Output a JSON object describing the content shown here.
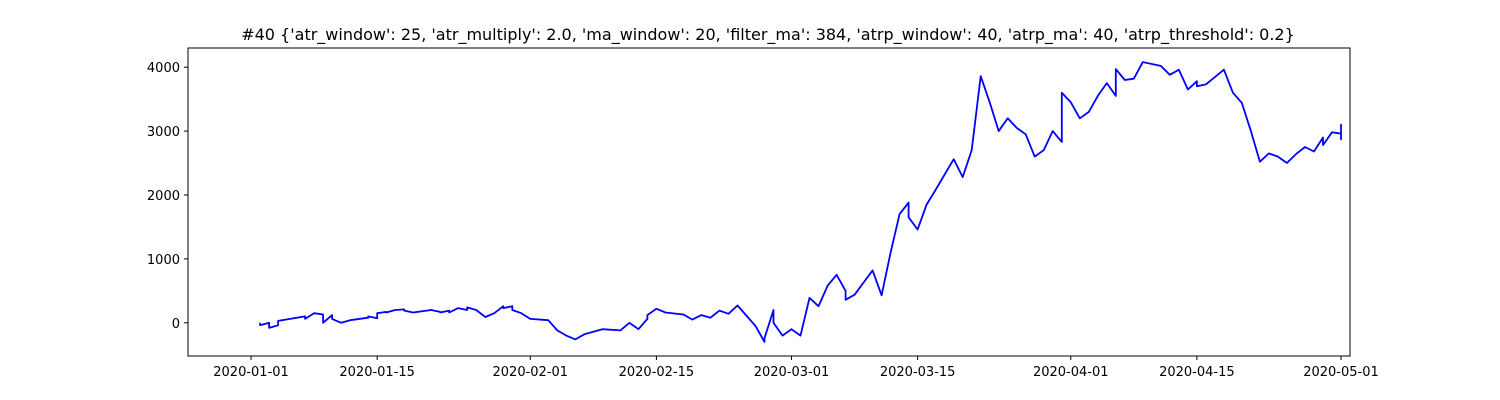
{
  "chart_data": {
    "type": "line",
    "title": "#40 {'atr_window': 25, 'atr_multiply': 2.0, 'ma_window': 20, 'filter_ma': 384, 'atrp_window': 40, 'atrp_ma': 40, 'atrp_threshold': 0.2}",
    "xlabel": "",
    "ylabel": "",
    "xlim": [
      "2019-12-25",
      "2020-05-02"
    ],
    "ylim": [
      -520,
      4300
    ],
    "grid": false,
    "legend": "none",
    "x_ticks": [
      "2020-01-01",
      "2020-01-15",
      "2020-02-01",
      "2020-02-15",
      "2020-03-01",
      "2020-03-15",
      "2020-04-01",
      "2020-04-15",
      "2020-05-01"
    ],
    "y_ticks": [
      0,
      1000,
      2000,
      3000,
      4000
    ],
    "series": [
      {
        "color": "#0000ff",
        "points": [
          [
            "2020-01-02",
            0
          ],
          [
            "2020-01-02",
            -40
          ],
          [
            "2020-01-03",
            0
          ],
          [
            "2020-01-03",
            -80
          ],
          [
            "2020-01-04",
            -40
          ],
          [
            "2020-01-04",
            30
          ],
          [
            "2020-01-07",
            100
          ],
          [
            "2020-01-07",
            60
          ],
          [
            "2020-01-08",
            150
          ],
          [
            "2020-01-09",
            130
          ],
          [
            "2020-01-09",
            0
          ],
          [
            "2020-01-10",
            120
          ],
          [
            "2020-01-10",
            60
          ],
          [
            "2020-01-11",
            0
          ],
          [
            "2020-01-12",
            40
          ],
          [
            "2020-01-14",
            80
          ],
          [
            "2020-01-14",
            100
          ],
          [
            "2020-01-15",
            70
          ],
          [
            "2020-01-15",
            150
          ],
          [
            "2020-01-16",
            170
          ],
          [
            "2020-01-16",
            160
          ],
          [
            "2020-01-17",
            200
          ],
          [
            "2020-01-18",
            210
          ],
          [
            "2020-01-18",
            190
          ],
          [
            "2020-01-19",
            160
          ],
          [
            "2020-01-21",
            200
          ],
          [
            "2020-01-22",
            170
          ],
          [
            "2020-01-22",
            160
          ],
          [
            "2020-01-23",
            190
          ],
          [
            "2020-01-23",
            160
          ],
          [
            "2020-01-24",
            230
          ],
          [
            "2020-01-25",
            200
          ],
          [
            "2020-01-25",
            240
          ],
          [
            "2020-01-26",
            200
          ],
          [
            "2020-01-27",
            90
          ],
          [
            "2020-01-28",
            150
          ],
          [
            "2020-01-29",
            260
          ],
          [
            "2020-01-29",
            230
          ],
          [
            "2020-01-30",
            260
          ],
          [
            "2020-01-30",
            200
          ],
          [
            "2020-01-31",
            150
          ],
          [
            "2020-02-01",
            60
          ],
          [
            "2020-02-03",
            40
          ],
          [
            "2020-02-04",
            -120
          ],
          [
            "2020-02-05",
            -200
          ],
          [
            "2020-02-06",
            -260
          ],
          [
            "2020-02-07",
            -180
          ],
          [
            "2020-02-08",
            -140
          ],
          [
            "2020-02-09",
            -100
          ],
          [
            "2020-02-11",
            -120
          ],
          [
            "2020-02-12",
            0
          ],
          [
            "2020-02-13",
            -100
          ],
          [
            "2020-02-14",
            60
          ],
          [
            "2020-02-14",
            120
          ],
          [
            "2020-02-15",
            220
          ],
          [
            "2020-02-16",
            160
          ],
          [
            "2020-02-18",
            130
          ],
          [
            "2020-02-19",
            50
          ],
          [
            "2020-02-20",
            120
          ],
          [
            "2020-02-21",
            80
          ],
          [
            "2020-02-22",
            190
          ],
          [
            "2020-02-23",
            140
          ],
          [
            "2020-02-24",
            270
          ],
          [
            "2020-02-26",
            -50
          ],
          [
            "2020-02-27",
            -300
          ],
          [
            "2020-02-27",
            -240
          ],
          [
            "2020-02-28",
            200
          ],
          [
            "2020-02-28",
            0
          ],
          [
            "2020-02-29",
            -200
          ],
          [
            "2020-03-01",
            -100
          ],
          [
            "2020-03-02",
            -200
          ],
          [
            "2020-03-03",
            390
          ],
          [
            "2020-03-04",
            260
          ],
          [
            "2020-03-05",
            580
          ],
          [
            "2020-03-06",
            750
          ],
          [
            "2020-03-07",
            500
          ],
          [
            "2020-03-07",
            360
          ],
          [
            "2020-03-08",
            440
          ],
          [
            "2020-03-10",
            820
          ],
          [
            "2020-03-11",
            430
          ],
          [
            "2020-03-12",
            1100
          ],
          [
            "2020-03-13",
            1700
          ],
          [
            "2020-03-14",
            1880
          ],
          [
            "2020-03-14",
            1650
          ],
          [
            "2020-03-15",
            1460
          ],
          [
            "2020-03-16",
            1850
          ],
          [
            "2020-03-17",
            2080
          ],
          [
            "2020-03-19",
            2560
          ],
          [
            "2020-03-20",
            2280
          ],
          [
            "2020-03-21",
            2700
          ],
          [
            "2020-03-22",
            3860
          ],
          [
            "2020-03-23",
            3450
          ],
          [
            "2020-03-24",
            3000
          ],
          [
            "2020-03-25",
            3200
          ],
          [
            "2020-03-26",
            3050
          ],
          [
            "2020-03-27",
            2950
          ],
          [
            "2020-03-28",
            2600
          ],
          [
            "2020-03-29",
            2700
          ],
          [
            "2020-03-30",
            3000
          ],
          [
            "2020-03-31",
            2830
          ],
          [
            "2020-03-31",
            3600
          ],
          [
            "2020-04-01",
            3450
          ],
          [
            "2020-04-02",
            3200
          ],
          [
            "2020-04-03",
            3300
          ],
          [
            "2020-04-04",
            3550
          ],
          [
            "2020-04-05",
            3750
          ],
          [
            "2020-04-06",
            3550
          ],
          [
            "2020-04-06",
            3970
          ],
          [
            "2020-04-07",
            3800
          ],
          [
            "2020-04-08",
            3820
          ],
          [
            "2020-04-09",
            4080
          ],
          [
            "2020-04-11",
            4020
          ],
          [
            "2020-04-12",
            3880
          ],
          [
            "2020-04-13",
            3960
          ],
          [
            "2020-04-14",
            3650
          ],
          [
            "2020-04-15",
            3780
          ],
          [
            "2020-04-15",
            3700
          ],
          [
            "2020-04-16",
            3730
          ],
          [
            "2020-04-18",
            3960
          ],
          [
            "2020-04-19",
            3600
          ],
          [
            "2020-04-20",
            3440
          ],
          [
            "2020-04-21",
            3000
          ],
          [
            "2020-04-22",
            2520
          ],
          [
            "2020-04-23",
            2650
          ],
          [
            "2020-04-24",
            2600
          ],
          [
            "2020-04-25",
            2500
          ],
          [
            "2020-04-26",
            2640
          ],
          [
            "2020-04-27",
            2750
          ],
          [
            "2020-04-28",
            2680
          ],
          [
            "2020-04-29",
            2900
          ],
          [
            "2020-04-29",
            2780
          ],
          [
            "2020-04-30",
            2980
          ],
          [
            "2020-05-01",
            2960
          ],
          [
            "2020-05-01",
            3100
          ],
          [
            "2020-05-01",
            2870
          ],
          [
            "2020-05-01",
            3030
          ],
          [
            "2020-05-01",
            2930
          ]
        ]
      }
    ]
  }
}
